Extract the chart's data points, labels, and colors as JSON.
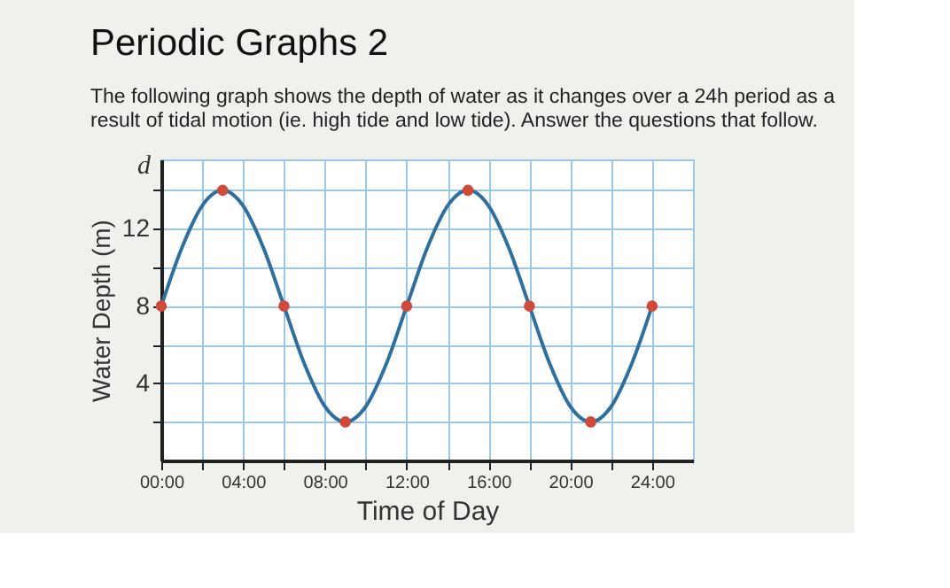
{
  "chart_data": {
    "type": "line",
    "title": "Periodic Graphs 2",
    "subtitle": "The following graph shows the depth of water as it changes over a 24h period as a result of tidal motion (ie. high tide and low tide). Answer the questions that follow.",
    "xlabel": "Time of Day",
    "ylabel": "Water Depth (m)",
    "annotations": [
      "d"
    ],
    "series": [
      {
        "color": "#2e6f9e",
        "marker": "none",
        "x": [
          0,
          1,
          2,
          3,
          4,
          5,
          6,
          7,
          8,
          9,
          10,
          11,
          12,
          13,
          14,
          15,
          16,
          17,
          18,
          19,
          20,
          21,
          22,
          23,
          24
        ],
        "values": [
          8,
          11,
          13.2,
          14,
          13.2,
          11,
          8,
          5,
          2.8,
          2,
          2.8,
          5,
          8,
          11,
          13.2,
          14,
          13.2,
          11,
          8,
          5,
          2.8,
          2,
          2.8,
          5,
          8
        ]
      },
      {
        "type": "scatter",
        "color": "#d04a3a",
        "marker": "circle",
        "x": [
          0,
          3,
          6,
          9,
          12,
          15,
          18,
          21,
          24
        ],
        "values": [
          8,
          14,
          8,
          2,
          8,
          14,
          8,
          2,
          8
        ]
      }
    ],
    "xlim": [
      0,
      26
    ],
    "ylim": [
      0,
      15.6
    ],
    "xticks": [
      {
        "value": 0,
        "label": "00:00"
      },
      {
        "value": 2,
        "label": null
      },
      {
        "value": 4,
        "label": "04:00"
      },
      {
        "value": 6,
        "label": null
      },
      {
        "value": 8,
        "label": "08:00"
      },
      {
        "value": 10,
        "label": null
      },
      {
        "value": 12,
        "label": "12:00"
      },
      {
        "value": 14,
        "label": null
      },
      {
        "value": 16,
        "label": "16:00"
      },
      {
        "value": 18,
        "label": null
      },
      {
        "value": 20,
        "label": "20:00"
      },
      {
        "value": 22,
        "label": null
      },
      {
        "value": 24,
        "label": "24:00"
      }
    ],
    "yticks": [
      {
        "value": 2,
        "label": null
      },
      4,
      {
        "value": 6,
        "label": null
      },
      8,
      {
        "value": 10,
        "label": null
      },
      12,
      {
        "value": 14,
        "label": null
      }
    ],
    "grid": true
  }
}
